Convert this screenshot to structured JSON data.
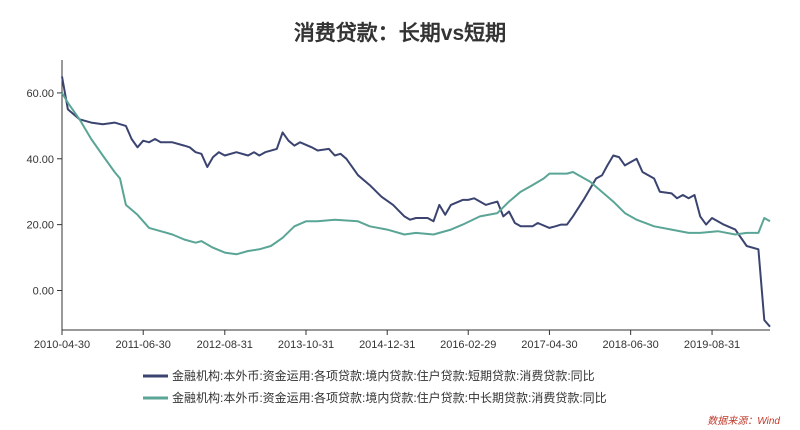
{
  "chart_data": {
    "type": "line",
    "title": "消费贷款：长期vs短期",
    "source": "数据来源：Wind",
    "x_ticks": [
      "2010-04-30",
      "2011-06-30",
      "2012-08-31",
      "2013-10-31",
      "2014-12-31",
      "2016-02-29",
      "2017-04-30",
      "2018-06-30",
      "2019-08-31"
    ],
    "x_range": [
      "2010-04-30",
      "2020-06-30"
    ],
    "ylim": [
      -12,
      70
    ],
    "y_ticks": [
      0,
      20,
      40,
      60
    ],
    "y_tick_labels": [
      "0.00",
      "20.00",
      "40.00",
      "60.00"
    ],
    "grid": false,
    "legend_position": "bottom",
    "series": [
      {
        "name": "金融机构:本外币:资金运用:各项贷款:境内贷款:住户贷款:短期贷款:消费贷款:同比",
        "color": "#3b4470",
        "points": [
          [
            "2010-04-30",
            65
          ],
          [
            "2010-05-31",
            55
          ],
          [
            "2010-07-31",
            52
          ],
          [
            "2010-09-30",
            51
          ],
          [
            "2010-11-30",
            50.5
          ],
          [
            "2011-01-31",
            51
          ],
          [
            "2011-03-31",
            50
          ],
          [
            "2011-04-30",
            46
          ],
          [
            "2011-05-31",
            43.5
          ],
          [
            "2011-06-30",
            45.5
          ],
          [
            "2011-07-31",
            45
          ],
          [
            "2011-08-31",
            46
          ],
          [
            "2011-09-30",
            45
          ],
          [
            "2011-11-30",
            45
          ],
          [
            "2012-01-31",
            44
          ],
          [
            "2012-02-29",
            43.5
          ],
          [
            "2012-03-31",
            42
          ],
          [
            "2012-04-30",
            41.5
          ],
          [
            "2012-05-31",
            37.5
          ],
          [
            "2012-06-30",
            40.5
          ],
          [
            "2012-07-31",
            42
          ],
          [
            "2012-08-31",
            41
          ],
          [
            "2012-10-31",
            42
          ],
          [
            "2012-12-31",
            41
          ],
          [
            "2013-01-31",
            42
          ],
          [
            "2013-02-28",
            41
          ],
          [
            "2013-03-31",
            42
          ],
          [
            "2013-05-31",
            43
          ],
          [
            "2013-06-30",
            48
          ],
          [
            "2013-07-31",
            45.5
          ],
          [
            "2013-08-31",
            44
          ],
          [
            "2013-09-30",
            45
          ],
          [
            "2013-11-30",
            43.5
          ],
          [
            "2013-12-31",
            42.5
          ],
          [
            "2014-02-28",
            43
          ],
          [
            "2014-03-31",
            41
          ],
          [
            "2014-04-30",
            41.5
          ],
          [
            "2014-05-31",
            40
          ],
          [
            "2014-07-31",
            35
          ],
          [
            "2014-09-30",
            32
          ],
          [
            "2014-11-30",
            28.5
          ],
          [
            "2015-01-31",
            26
          ],
          [
            "2015-03-31",
            22.5
          ],
          [
            "2015-04-30",
            21.5
          ],
          [
            "2015-05-31",
            22
          ],
          [
            "2015-07-31",
            22
          ],
          [
            "2015-08-31",
            21
          ],
          [
            "2015-09-30",
            26
          ],
          [
            "2015-10-31",
            23
          ],
          [
            "2015-11-30",
            26
          ],
          [
            "2016-01-31",
            27.5
          ],
          [
            "2016-02-29",
            27.5
          ],
          [
            "2016-03-31",
            28
          ],
          [
            "2016-05-31",
            26
          ],
          [
            "2016-06-30",
            26.5
          ],
          [
            "2016-07-31",
            27
          ],
          [
            "2016-08-31",
            22.5
          ],
          [
            "2016-09-30",
            24
          ],
          [
            "2016-10-31",
            20.5
          ],
          [
            "2016-11-30",
            19.5
          ],
          [
            "2017-01-31",
            19.5
          ],
          [
            "2017-02-28",
            20.5
          ],
          [
            "2017-04-30",
            19
          ],
          [
            "2017-05-31",
            19.5
          ],
          [
            "2017-06-30",
            20
          ],
          [
            "2017-07-31",
            20
          ],
          [
            "2017-08-31",
            22.5
          ],
          [
            "2017-10-31",
            28
          ],
          [
            "2017-12-31",
            34
          ],
          [
            "2018-01-31",
            35
          ],
          [
            "2018-02-28",
            38
          ],
          [
            "2018-03-31",
            41
          ],
          [
            "2018-04-30",
            40.5
          ],
          [
            "2018-05-31",
            38
          ],
          [
            "2018-06-30",
            39
          ],
          [
            "2018-07-31",
            40
          ],
          [
            "2018-08-31",
            36
          ],
          [
            "2018-10-31",
            34
          ],
          [
            "2018-11-30",
            30
          ],
          [
            "2019-01-31",
            29.5
          ],
          [
            "2019-02-28",
            28
          ],
          [
            "2019-03-31",
            29
          ],
          [
            "2019-04-30",
            28
          ],
          [
            "2019-05-31",
            29
          ],
          [
            "2019-06-30",
            22.5
          ],
          [
            "2019-07-31",
            20
          ],
          [
            "2019-08-31",
            22
          ],
          [
            "2019-10-31",
            20
          ],
          [
            "2019-12-31",
            18.5
          ],
          [
            "2020-02-29",
            13.5
          ],
          [
            "2020-04-30",
            12.5
          ],
          [
            "2020-05-31",
            -9
          ],
          [
            "2020-06-30",
            -11
          ]
        ]
      },
      {
        "name": "金融机构:本外币:资金运用:各项贷款:境内贷款:住户贷款:中长期贷款:消费贷款:同比",
        "color": "#5aa596",
        "points": [
          [
            "2010-04-30",
            60
          ],
          [
            "2010-05-31",
            57
          ],
          [
            "2010-07-31",
            52
          ],
          [
            "2010-09-30",
            46
          ],
          [
            "2010-11-30",
            41
          ],
          [
            "2011-01-31",
            36
          ],
          [
            "2011-02-28",
            34
          ],
          [
            "2011-03-31",
            26
          ],
          [
            "2011-05-31",
            23
          ],
          [
            "2011-07-31",
            19
          ],
          [
            "2011-09-30",
            18
          ],
          [
            "2011-11-30",
            17
          ],
          [
            "2012-01-31",
            15.5
          ],
          [
            "2012-03-31",
            14.5
          ],
          [
            "2012-04-30",
            15
          ],
          [
            "2012-06-30",
            13
          ],
          [
            "2012-08-31",
            11.5
          ],
          [
            "2012-10-31",
            11
          ],
          [
            "2012-12-31",
            12
          ],
          [
            "2013-02-28",
            12.5
          ],
          [
            "2013-04-30",
            13.5
          ],
          [
            "2013-06-30",
            16
          ],
          [
            "2013-08-31",
            19.5
          ],
          [
            "2013-10-31",
            21
          ],
          [
            "2013-12-31",
            21
          ],
          [
            "2014-03-31",
            21.5
          ],
          [
            "2014-07-31",
            21
          ],
          [
            "2014-09-30",
            19.5
          ],
          [
            "2014-12-31",
            18.5
          ],
          [
            "2015-03-31",
            17
          ],
          [
            "2015-05-31",
            17.5
          ],
          [
            "2015-08-31",
            17
          ],
          [
            "2015-11-30",
            18.5
          ],
          [
            "2016-01-31",
            20
          ],
          [
            "2016-04-30",
            22.5
          ],
          [
            "2016-07-31",
            23.5
          ],
          [
            "2016-09-30",
            27
          ],
          [
            "2016-11-30",
            30
          ],
          [
            "2017-01-31",
            32
          ],
          [
            "2017-03-31",
            34
          ],
          [
            "2017-04-30",
            35.5
          ],
          [
            "2017-07-31",
            35.5
          ],
          [
            "2017-08-31",
            36
          ],
          [
            "2017-11-30",
            33
          ],
          [
            "2018-03-31",
            27
          ],
          [
            "2018-05-31",
            23.5
          ],
          [
            "2018-07-31",
            21.5
          ],
          [
            "2018-10-31",
            19.5
          ],
          [
            "2019-01-31",
            18.5
          ],
          [
            "2019-04-30",
            17.5
          ],
          [
            "2019-06-30",
            17.5
          ],
          [
            "2019-09-30",
            18
          ],
          [
            "2019-12-31",
            17
          ],
          [
            "2020-02-29",
            17.5
          ],
          [
            "2020-04-30",
            17.5
          ],
          [
            "2020-05-31",
            22
          ],
          [
            "2020-06-30",
            21
          ]
        ]
      }
    ]
  }
}
